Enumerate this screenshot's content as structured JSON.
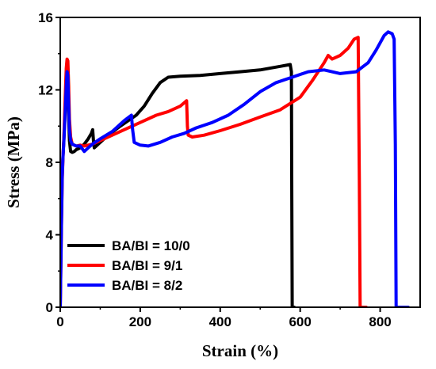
{
  "chart_data": {
    "type": "line",
    "title": "",
    "xlabel": "Strain (%)",
    "ylabel": "Stress (MPa)",
    "xlim": [
      0,
      900
    ],
    "ylim": [
      0,
      16
    ],
    "xticks": [
      0,
      200,
      400,
      600,
      800
    ],
    "yticks": [
      0,
      4,
      8,
      12,
      16
    ],
    "x_tick_labels": [
      "0",
      "200",
      "400",
      "600",
      "800"
    ],
    "y_tick_labels": [
      "0",
      "4",
      "8",
      "12",
      "16"
    ],
    "grid": false,
    "legend_position": "bottom-left",
    "series": [
      {
        "name": "BA/BI = 10/0",
        "color": "#000000",
        "points": [
          [
            0,
            0
          ],
          [
            1,
            2
          ],
          [
            3,
            5.5
          ],
          [
            5,
            7.5
          ],
          [
            7,
            8.4
          ],
          [
            9,
            9.2
          ],
          [
            11,
            10.2
          ],
          [
            13,
            11.4
          ],
          [
            15,
            12.7
          ],
          [
            17,
            13.0
          ],
          [
            19,
            12.4
          ],
          [
            21,
            10.6
          ],
          [
            23,
            9.2
          ],
          [
            26,
            8.6
          ],
          [
            30,
            8.55
          ],
          [
            35,
            8.6
          ],
          [
            40,
            8.7
          ],
          [
            50,
            8.8
          ],
          [
            60,
            9.0
          ],
          [
            70,
            9.3
          ],
          [
            78,
            9.6
          ],
          [
            81,
            9.8
          ],
          [
            83,
            9.2
          ],
          [
            85,
            8.8
          ],
          [
            90,
            8.9
          ],
          [
            100,
            9.1
          ],
          [
            120,
            9.5
          ],
          [
            150,
            10.0
          ],
          [
            170,
            10.3
          ],
          [
            190,
            10.6
          ],
          [
            210,
            11.1
          ],
          [
            230,
            11.8
          ],
          [
            250,
            12.4
          ],
          [
            270,
            12.7
          ],
          [
            300,
            12.75
          ],
          [
            350,
            12.8
          ],
          [
            400,
            12.9
          ],
          [
            450,
            13.0
          ],
          [
            500,
            13.1
          ],
          [
            550,
            13.3
          ],
          [
            575,
            13.4
          ],
          [
            578,
            13.0
          ],
          [
            579,
            6
          ],
          [
            580,
            0
          ],
          [
            585,
            0
          ]
        ]
      },
      {
        "name": "BA/BI = 9/1",
        "color": "#ff0000",
        "points": [
          [
            0,
            0
          ],
          [
            1,
            1.5
          ],
          [
            3,
            4.5
          ],
          [
            5,
            7
          ],
          [
            7,
            8.3
          ],
          [
            9,
            9.3
          ],
          [
            11,
            10.6
          ],
          [
            13,
            12
          ],
          [
            15,
            13.2
          ],
          [
            17,
            13.7
          ],
          [
            19,
            13.6
          ],
          [
            21,
            12.2
          ],
          [
            23,
            10.4
          ],
          [
            26,
            9.4
          ],
          [
            30,
            9.0
          ],
          [
            40,
            8.9
          ],
          [
            50,
            8.95
          ],
          [
            60,
            8.9
          ],
          [
            80,
            9.0
          ],
          [
            100,
            9.2
          ],
          [
            130,
            9.5
          ],
          [
            160,
            9.8
          ],
          [
            200,
            10.2
          ],
          [
            240,
            10.6
          ],
          [
            270,
            10.8
          ],
          [
            300,
            11.1
          ],
          [
            316,
            11.4
          ],
          [
            318,
            10
          ],
          [
            320,
            9.5
          ],
          [
            330,
            9.4
          ],
          [
            360,
            9.5
          ],
          [
            400,
            9.75
          ],
          [
            450,
            10.1
          ],
          [
            500,
            10.5
          ],
          [
            550,
            10.9
          ],
          [
            600,
            11.6
          ],
          [
            630,
            12.5
          ],
          [
            660,
            13.5
          ],
          [
            670,
            13.9
          ],
          [
            680,
            13.7
          ],
          [
            700,
            13.9
          ],
          [
            720,
            14.3
          ],
          [
            735,
            14.8
          ],
          [
            745,
            14.9
          ],
          [
            748,
            7
          ],
          [
            750,
            0
          ],
          [
            765,
            0
          ]
        ]
      },
      {
        "name": "BA/BI = 8/2",
        "color": "#0000ff",
        "points": [
          [
            0,
            0
          ],
          [
            1,
            1.5
          ],
          [
            3,
            4.5
          ],
          [
            5,
            7.2
          ],
          [
            7,
            8.3
          ],
          [
            9,
            9.1
          ],
          [
            11,
            10.0
          ],
          [
            13,
            11.1
          ],
          [
            15,
            12.2
          ],
          [
            17,
            13.0
          ],
          [
            19,
            12.8
          ],
          [
            21,
            11.2
          ],
          [
            23,
            9.8
          ],
          [
            26,
            9.2
          ],
          [
            30,
            9.0
          ],
          [
            40,
            8.9
          ],
          [
            50,
            8.9
          ],
          [
            60,
            8.6
          ],
          [
            70,
            8.8
          ],
          [
            80,
            9.0
          ],
          [
            100,
            9.3
          ],
          [
            130,
            9.7
          ],
          [
            160,
            10.3
          ],
          [
            178,
            10.6
          ],
          [
            181,
            9.8
          ],
          [
            185,
            9.1
          ],
          [
            200,
            8.95
          ],
          [
            220,
            8.9
          ],
          [
            250,
            9.1
          ],
          [
            280,
            9.4
          ],
          [
            310,
            9.6
          ],
          [
            340,
            9.9
          ],
          [
            380,
            10.2
          ],
          [
            420,
            10.6
          ],
          [
            460,
            11.2
          ],
          [
            500,
            11.9
          ],
          [
            540,
            12.4
          ],
          [
            580,
            12.7
          ],
          [
            620,
            13.0
          ],
          [
            660,
            13.1
          ],
          [
            700,
            12.9
          ],
          [
            740,
            13.0
          ],
          [
            770,
            13.5
          ],
          [
            790,
            14.2
          ],
          [
            810,
            15.0
          ],
          [
            820,
            15.2
          ],
          [
            830,
            15.1
          ],
          [
            835,
            14.8
          ],
          [
            838,
            9
          ],
          [
            840,
            0
          ],
          [
            870,
            0
          ]
        ]
      }
    ]
  }
}
